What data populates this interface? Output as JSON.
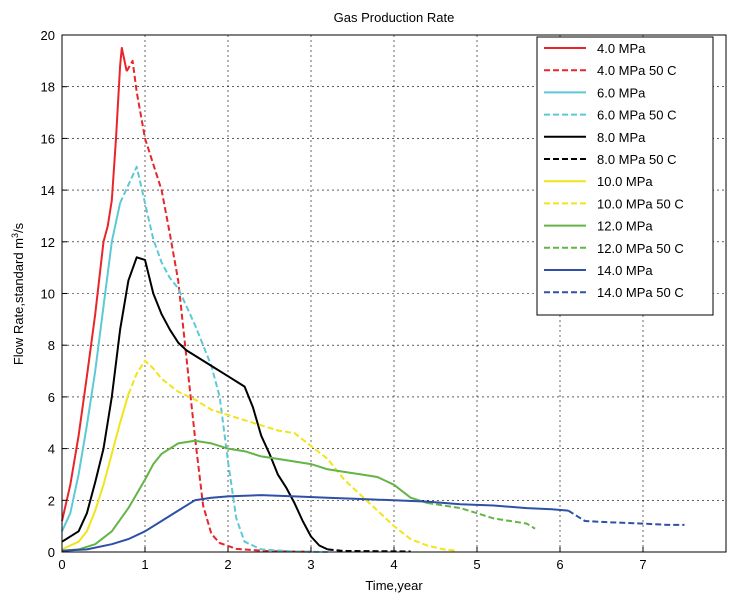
{
  "chart_data": {
    "type": "line",
    "title": "Gas Production Rate",
    "xlabel": "Time,year",
    "ylabel": "Flow Rate,standard m",
    "ylabel_sup": "3",
    "ylabel_suffix": "/s",
    "xlim": [
      0,
      8
    ],
    "ylim": [
      0,
      20
    ],
    "xticks": [
      0,
      1,
      2,
      3,
      4,
      5,
      6,
      7
    ],
    "yticks": [
      0,
      2,
      4,
      6,
      8,
      10,
      12,
      14,
      16,
      18,
      20
    ],
    "grid": true,
    "legend_position": "top-right",
    "series": [
      {
        "name": "4.0 MPa",
        "color": "#e8262a",
        "dash": "solid",
        "points": [
          [
            0,
            1.2
          ],
          [
            0.1,
            2.6
          ],
          [
            0.2,
            4.5
          ],
          [
            0.3,
            6.8
          ],
          [
            0.4,
            9.2
          ],
          [
            0.5,
            12.0
          ],
          [
            0.55,
            12.6
          ],
          [
            0.6,
            13.6
          ],
          [
            0.65,
            16.0
          ],
          [
            0.7,
            18.8
          ],
          [
            0.72,
            19.5
          ],
          [
            0.78,
            18.6
          ]
        ]
      },
      {
        "name": "4.0 MPa 50 C",
        "color": "#e8262a",
        "dash": "dashed",
        "points": [
          [
            0.78,
            18.6
          ],
          [
            0.85,
            19.0
          ],
          [
            0.9,
            17.8
          ],
          [
            1.0,
            16.0
          ],
          [
            1.1,
            15.0
          ],
          [
            1.2,
            14.0
          ],
          [
            1.3,
            12.3
          ],
          [
            1.4,
            10.5
          ],
          [
            1.5,
            7.5
          ],
          [
            1.6,
            4.5
          ],
          [
            1.7,
            1.8
          ],
          [
            1.8,
            0.7
          ],
          [
            1.9,
            0.35
          ],
          [
            2.1,
            0.12
          ],
          [
            2.5,
            0.03
          ],
          [
            3.0,
            0.01
          ]
        ]
      },
      {
        "name": "6.0 MPa",
        "color": "#5ccad6",
        "dash": "solid",
        "points": [
          [
            0,
            0.8
          ],
          [
            0.1,
            1.5
          ],
          [
            0.2,
            3.0
          ],
          [
            0.3,
            4.9
          ],
          [
            0.4,
            7.0
          ],
          [
            0.5,
            9.5
          ],
          [
            0.6,
            12.0
          ],
          [
            0.7,
            13.5
          ]
        ]
      },
      {
        "name": "6.0 MPa 50 C",
        "color": "#5ccad6",
        "dash": "dashed",
        "points": [
          [
            0.7,
            13.5
          ],
          [
            0.8,
            14.2
          ],
          [
            0.9,
            14.9
          ],
          [
            1.0,
            13.5
          ],
          [
            1.1,
            12.1
          ],
          [
            1.2,
            11.2
          ],
          [
            1.3,
            10.6
          ],
          [
            1.4,
            10.2
          ],
          [
            1.5,
            9.5
          ],
          [
            1.6,
            8.8
          ],
          [
            1.7,
            8.0
          ],
          [
            1.8,
            7.2
          ],
          [
            1.9,
            6.0
          ],
          [
            2.0,
            3.5
          ],
          [
            2.1,
            1.3
          ],
          [
            2.2,
            0.4
          ],
          [
            2.4,
            0.1
          ],
          [
            2.8,
            0.02
          ],
          [
            3.2,
            0.0
          ]
        ]
      },
      {
        "name": "8.0 MPa",
        "color": "#000000",
        "dash": "solid",
        "points": [
          [
            0,
            0.4
          ],
          [
            0.2,
            0.8
          ],
          [
            0.3,
            1.5
          ],
          [
            0.4,
            2.7
          ],
          [
            0.5,
            4.0
          ],
          [
            0.6,
            6.0
          ],
          [
            0.7,
            8.6
          ],
          [
            0.8,
            10.5
          ],
          [
            0.9,
            11.4
          ],
          [
            1.0,
            11.3
          ],
          [
            1.1,
            10.0
          ],
          [
            1.2,
            9.2
          ],
          [
            1.3,
            8.6
          ],
          [
            1.4,
            8.1
          ],
          [
            1.5,
            7.8
          ],
          [
            1.6,
            7.6
          ],
          [
            1.8,
            7.2
          ],
          [
            2.0,
            6.8
          ],
          [
            2.2,
            6.4
          ],
          [
            2.3,
            5.6
          ],
          [
            2.4,
            4.5
          ],
          [
            2.5,
            3.8
          ],
          [
            2.6,
            3.0
          ],
          [
            2.7,
            2.5
          ],
          [
            2.8,
            1.9
          ],
          [
            2.9,
            1.2
          ],
          [
            3.0,
            0.6
          ],
          [
            3.1,
            0.25
          ],
          [
            3.2,
            0.1
          ]
        ]
      },
      {
        "name": "8.0 MPa 50 C",
        "color": "#000000",
        "dash": "dashed",
        "points": [
          [
            3.2,
            0.1
          ],
          [
            3.4,
            0.04
          ],
          [
            3.8,
            0.03
          ],
          [
            4.2,
            0.02
          ]
        ]
      },
      {
        "name": "10.0 MPa",
        "color": "#f2e41a",
        "dash": "solid",
        "points": [
          [
            0,
            0.1
          ],
          [
            0.2,
            0.4
          ],
          [
            0.3,
            0.8
          ],
          [
            0.4,
            1.6
          ],
          [
            0.5,
            2.6
          ],
          [
            0.6,
            3.8
          ],
          [
            0.7,
            5.0
          ],
          [
            0.8,
            6.1
          ]
        ]
      },
      {
        "name": "10.0 MPa 50 C",
        "color": "#f2e41a",
        "dash": "dashed",
        "points": [
          [
            0.8,
            6.1
          ],
          [
            0.9,
            6.9
          ],
          [
            1.0,
            7.4
          ],
          [
            1.1,
            7.1
          ],
          [
            1.2,
            6.7
          ],
          [
            1.4,
            6.2
          ],
          [
            1.6,
            5.9
          ],
          [
            1.8,
            5.5
          ],
          [
            2.0,
            5.3
          ],
          [
            2.2,
            5.1
          ],
          [
            2.4,
            4.9
          ],
          [
            2.6,
            4.7
          ],
          [
            2.8,
            4.6
          ],
          [
            3.0,
            4.1
          ],
          [
            3.2,
            3.6
          ],
          [
            3.4,
            2.8
          ],
          [
            3.6,
            2.2
          ],
          [
            3.8,
            1.6
          ],
          [
            4.0,
            1.0
          ],
          [
            4.2,
            0.5
          ],
          [
            4.4,
            0.25
          ],
          [
            4.6,
            0.1
          ],
          [
            4.75,
            0.05
          ]
        ]
      },
      {
        "name": "12.0 MPa",
        "color": "#64b446",
        "dash": "solid",
        "points": [
          [
            0,
            0.05
          ],
          [
            0.2,
            0.1
          ],
          [
            0.4,
            0.3
          ],
          [
            0.6,
            0.8
          ],
          [
            0.8,
            1.7
          ],
          [
            1.0,
            2.8
          ],
          [
            1.1,
            3.4
          ],
          [
            1.2,
            3.8
          ],
          [
            1.4,
            4.2
          ],
          [
            1.6,
            4.3
          ],
          [
            1.8,
            4.2
          ],
          [
            2.0,
            4.0
          ],
          [
            2.2,
            3.9
          ],
          [
            2.4,
            3.7
          ],
          [
            2.6,
            3.6
          ],
          [
            2.8,
            3.5
          ],
          [
            3.0,
            3.4
          ],
          [
            3.2,
            3.2
          ],
          [
            3.4,
            3.1
          ],
          [
            3.6,
            3.0
          ],
          [
            3.8,
            2.9
          ],
          [
            4.0,
            2.6
          ],
          [
            4.2,
            2.1
          ],
          [
            4.4,
            1.9
          ]
        ]
      },
      {
        "name": "12.0 MPa 50 C",
        "color": "#64b446",
        "dash": "dashed",
        "points": [
          [
            4.4,
            1.9
          ],
          [
            4.6,
            1.8
          ],
          [
            4.8,
            1.7
          ],
          [
            5.0,
            1.5
          ],
          [
            5.2,
            1.3
          ],
          [
            5.4,
            1.2
          ],
          [
            5.6,
            1.1
          ],
          [
            5.7,
            0.9
          ]
        ]
      },
      {
        "name": "14.0 MPa",
        "color": "#2e50a8",
        "dash": "solid",
        "points": [
          [
            0,
            0.05
          ],
          [
            0.3,
            0.1
          ],
          [
            0.6,
            0.3
          ],
          [
            0.8,
            0.5
          ],
          [
            1.0,
            0.8
          ],
          [
            1.2,
            1.2
          ],
          [
            1.4,
            1.6
          ],
          [
            1.6,
            2.0
          ],
          [
            1.8,
            2.1
          ],
          [
            2.0,
            2.15
          ],
          [
            2.4,
            2.2
          ],
          [
            2.8,
            2.15
          ],
          [
            3.2,
            2.1
          ],
          [
            3.6,
            2.05
          ],
          [
            4.0,
            2.0
          ],
          [
            4.4,
            1.95
          ],
          [
            4.8,
            1.85
          ],
          [
            5.2,
            1.8
          ],
          [
            5.6,
            1.7
          ],
          [
            5.9,
            1.65
          ],
          [
            6.1,
            1.6
          ]
        ]
      },
      {
        "name": "14.0 MPa 50 C",
        "color": "#2e50a8",
        "dash": "dashed",
        "points": [
          [
            6.1,
            1.6
          ],
          [
            6.2,
            1.4
          ],
          [
            6.3,
            1.2
          ],
          [
            6.6,
            1.15
          ],
          [
            7.0,
            1.1
          ],
          [
            7.3,
            1.05
          ],
          [
            7.5,
            1.05
          ]
        ]
      }
    ]
  }
}
